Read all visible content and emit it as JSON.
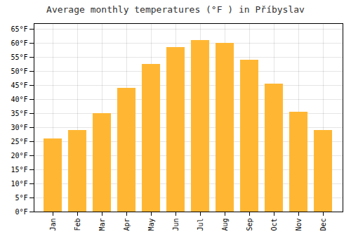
{
  "chart_data": {
    "type": "bar",
    "title": "Average monthly temperatures (°F ) in Příbyslav",
    "categories": [
      "Jan",
      "Feb",
      "Mar",
      "Apr",
      "May",
      "Jun",
      "Jul",
      "Aug",
      "Sep",
      "Oct",
      "Nov",
      "Dec"
    ],
    "values": [
      26,
      29,
      35,
      44,
      52.5,
      58.5,
      61,
      60,
      54,
      45.5,
      35.5,
      29
    ],
    "color": "#FFB733",
    "ylim": [
      0,
      67
    ],
    "yticks": [
      {
        "value": 0,
        "label": "0°F"
      },
      {
        "value": 5,
        "label": "5°F"
      },
      {
        "value": 10,
        "label": "10°F"
      },
      {
        "value": 15,
        "label": "15°F"
      },
      {
        "value": 20,
        "label": "20°F"
      },
      {
        "value": 25,
        "label": "25°F"
      },
      {
        "value": 30,
        "label": "30°F"
      },
      {
        "value": 35,
        "label": "35°F"
      },
      {
        "value": 40,
        "label": "40°F"
      },
      {
        "value": 45,
        "label": "45°F"
      },
      {
        "value": 50,
        "label": "50°F"
      },
      {
        "value": 55,
        "label": "55°F"
      },
      {
        "value": 60,
        "label": "60°F"
      },
      {
        "value": 65,
        "label": "65°F"
      }
    ],
    "grid": true
  }
}
